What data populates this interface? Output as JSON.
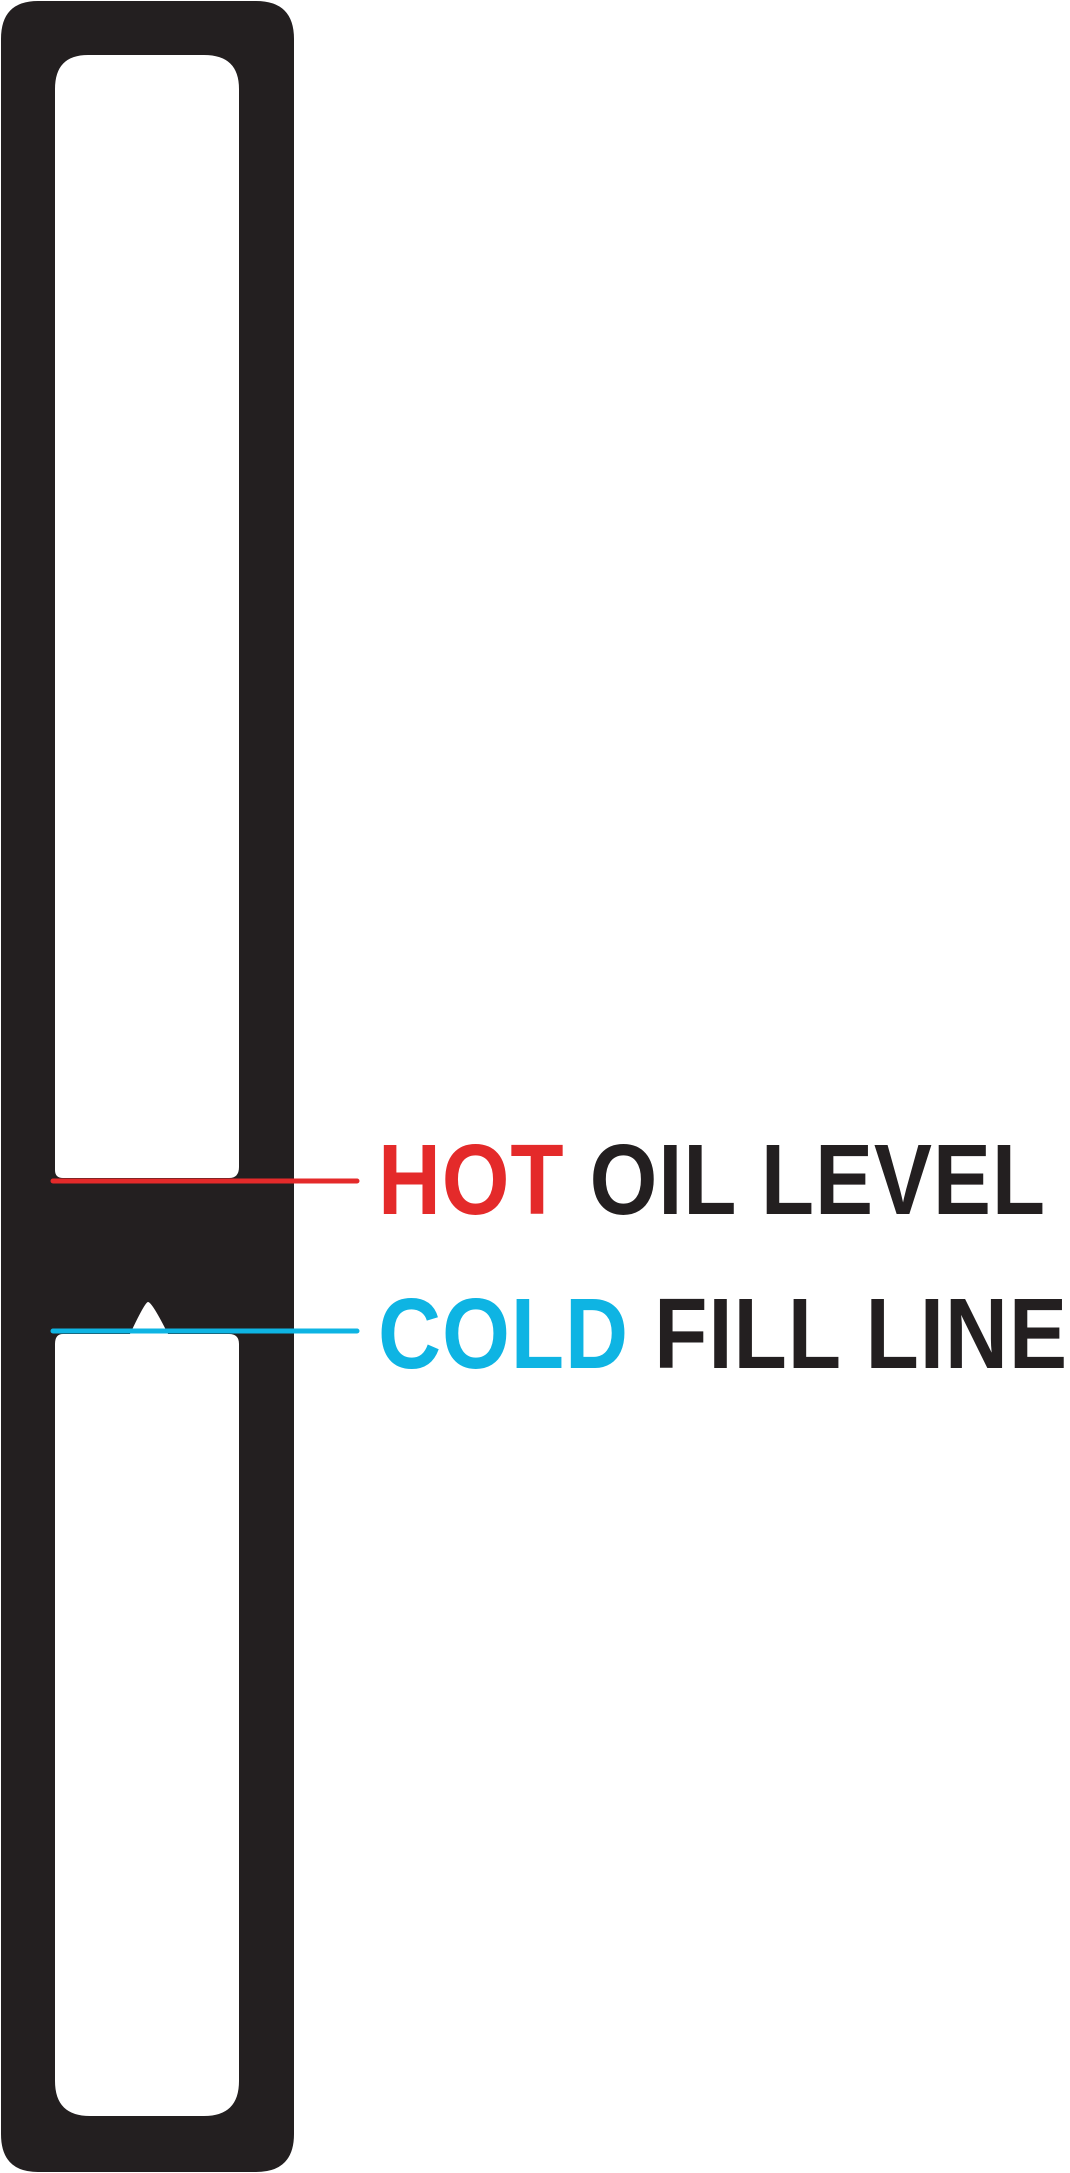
{
  "hot_label": {
    "prefix": "HOT",
    "suffix": " OIL LEVEL",
    "color": "#e42a2a"
  },
  "cold_label": {
    "prefix": "COLD",
    "suffix": " FILL LINE",
    "color": "#0eb4e3"
  },
  "gauge_color": "#231f20",
  "text_color": "#231f20"
}
